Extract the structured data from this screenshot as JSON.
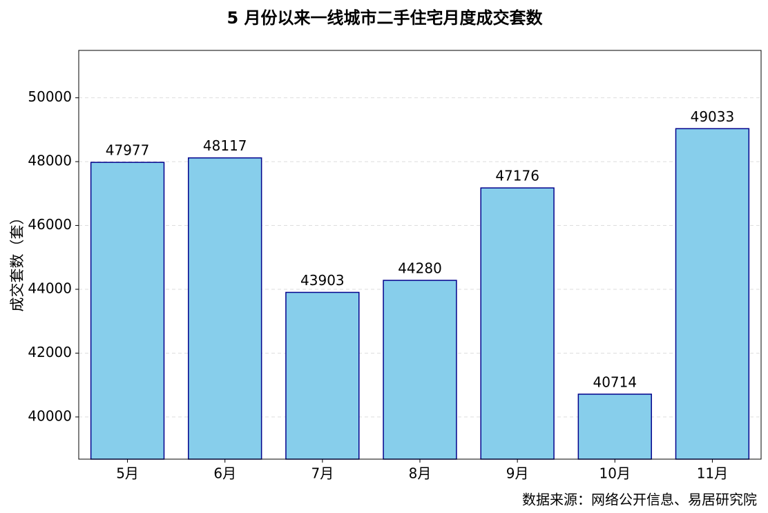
{
  "chart_data": {
    "type": "bar",
    "title": "5 月份以来一线城市二手住宅月度成交套数",
    "y_label": "成交套数（套）",
    "source": "数据来源：网络公开信息、易居研究院",
    "categories": [
      "5月",
      "6月",
      "7月",
      "8月",
      "9月",
      "10月",
      "11月"
    ],
    "values": [
      47977,
      48117,
      43903,
      44280,
      47176,
      40714,
      49033
    ],
    "color": "#87ceeb",
    "edge_color": "#00008b",
    "ylim": [
      38678,
      51485
    ],
    "yticks": [
      40000,
      42000,
      44000,
      46000,
      48000,
      50000
    ],
    "grid": true
  }
}
